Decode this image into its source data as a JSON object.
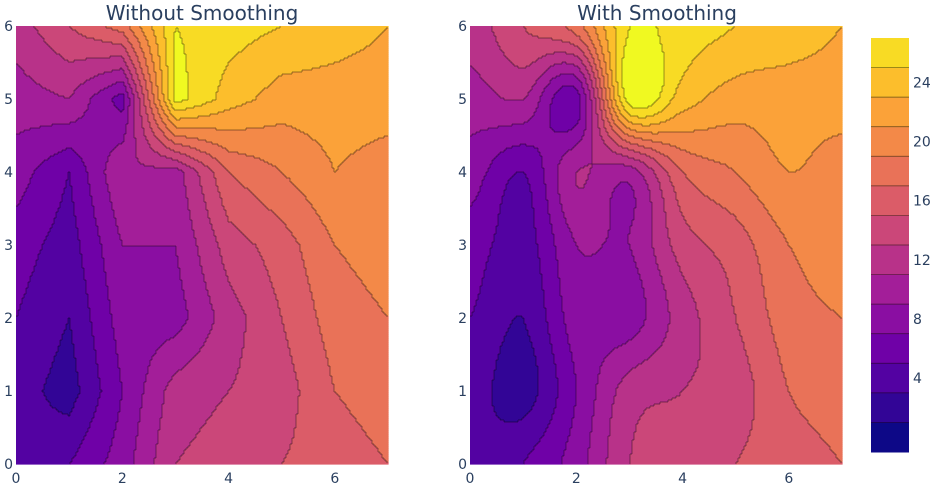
{
  "chart_data": [
    {
      "type": "contour",
      "title": "Without Smoothing",
      "smoothing": 0,
      "x": [
        0,
        1,
        2,
        3,
        4,
        5,
        6,
        7
      ],
      "y": [
        0,
        1,
        2,
        3,
        4,
        5,
        6
      ],
      "z": [
        [
          2,
          4,
          7,
          12,
          13,
          14,
          15,
          16
        ],
        [
          3,
          1,
          6,
          11,
          12,
          13,
          16,
          17
        ],
        [
          4,
          2,
          7,
          7,
          11,
          14,
          17,
          18
        ],
        [
          5,
          3,
          8,
          8,
          13,
          15,
          18,
          19
        ],
        [
          7,
          4,
          10,
          9,
          16,
          18,
          20,
          19
        ],
        [
          9,
          10,
          5,
          27,
          23,
          21,
          21,
          21
        ],
        [
          11,
          14,
          17,
          26,
          25,
          24,
          23,
          22
        ]
      ],
      "xticks": [
        "0",
        "2",
        "4",
        "6"
      ],
      "yticks": [
        "0",
        "1",
        "2",
        "3",
        "4",
        "5",
        "6"
      ]
    },
    {
      "type": "contour",
      "title": "With Smoothing",
      "smoothing": 0.85,
      "x": [
        0,
        1,
        2,
        3,
        4,
        5,
        6,
        7
      ],
      "y": [
        0,
        1,
        2,
        3,
        4,
        5,
        6
      ],
      "z": [
        [
          2,
          4,
          7,
          12,
          13,
          14,
          15,
          16
        ],
        [
          3,
          1,
          6,
          11,
          12,
          13,
          16,
          17
        ],
        [
          4,
          2,
          7,
          7,
          11,
          14,
          17,
          18
        ],
        [
          5,
          3,
          8,
          8,
          13,
          15,
          18,
          19
        ],
        [
          7,
          4,
          10,
          9,
          16,
          18,
          20,
          19
        ],
        [
          9,
          10,
          5,
          27,
          23,
          21,
          21,
          21
        ],
        [
          11,
          14,
          17,
          26,
          25,
          24,
          23,
          22
        ]
      ],
      "xticks": [
        "0",
        "2",
        "4",
        "6"
      ],
      "yticks": [
        "0",
        "1",
        "2",
        "3",
        "4",
        "5",
        "6"
      ]
    }
  ],
  "colorbar": {
    "start": 0,
    "end": 26,
    "size": 2,
    "ticks": [
      "4",
      "8",
      "12",
      "16",
      "20",
      "24"
    ],
    "tick_values": [
      4,
      8,
      12,
      16,
      20,
      24
    ],
    "colorscale": [
      "#0d0887",
      "#46039f",
      "#7201a8",
      "#9c179e",
      "#bd3786",
      "#d8576b",
      "#ed7953",
      "#fb9f3a",
      "#fdca26",
      "#f0f921"
    ]
  }
}
